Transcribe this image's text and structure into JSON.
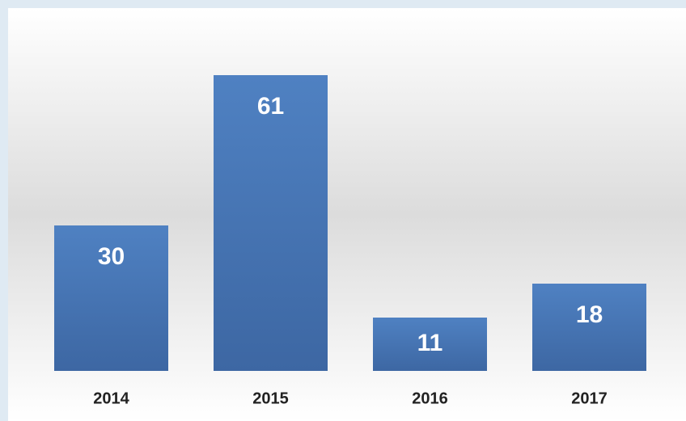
{
  "chart_data": {
    "type": "bar",
    "categories": [
      "2014",
      "2015",
      "2016",
      "2017"
    ],
    "values": [
      30,
      61,
      11,
      18
    ],
    "color": "#4a78b8",
    "ylim": [
      0,
      70
    ]
  }
}
